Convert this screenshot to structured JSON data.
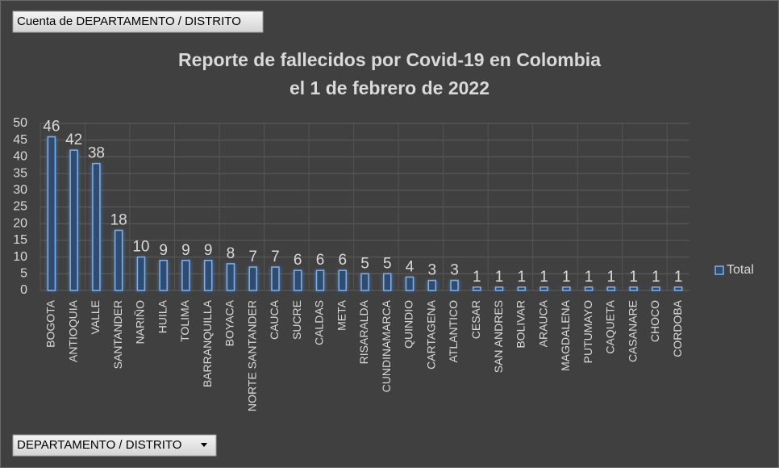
{
  "field_buttons": {
    "value_field": "Cuenta de DEPARTAMENTO / DISTRITO",
    "axis_field": "DEPARTAMENTO / DISTRITO"
  },
  "chart_data": {
    "type": "bar",
    "title": "Reporte de fallecidos por Covid-19 en Colombia",
    "subtitle": "el 1 de febrero de 2022",
    "categories": [
      "BOGOTA",
      "ANTIOQUIA",
      "VALLE",
      "SANTANDER",
      "NARIÑO",
      "HUILA",
      "TOLIMA",
      "BARRANQUILLA",
      "BOYACA",
      "NORTE SANTANDER",
      "CAUCA",
      "SUCRE",
      "CALDAS",
      "META",
      "RISARALDA",
      "CUNDINAMARCA",
      "QUINDIO",
      "CARTAGENA",
      "ATLANTICO",
      "CESAR",
      "SAN ANDRES",
      "BOLIVAR",
      "ARAUCA",
      "MAGDALENA",
      "PUTUMAYO",
      "CAQUETA",
      "CASANARE",
      "CHOCO",
      "CORDOBA"
    ],
    "series": [
      {
        "name": "Total",
        "color": "#4f81bd",
        "values": [
          46,
          42,
          38,
          18,
          10,
          9,
          9,
          9,
          8,
          7,
          7,
          6,
          6,
          6,
          5,
          5,
          4,
          3,
          3,
          1,
          1,
          1,
          1,
          1,
          1,
          1,
          1,
          1,
          1
        ]
      }
    ],
    "ylim": [
      0,
      50
    ],
    "yticks": [
      0,
      5,
      10,
      15,
      20,
      25,
      30,
      35,
      40,
      45,
      50
    ],
    "grid": true,
    "legend": "right"
  }
}
